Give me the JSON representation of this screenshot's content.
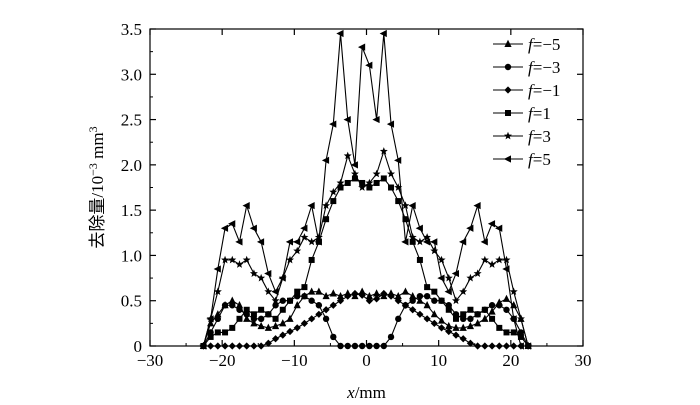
{
  "chart_data": {
    "type": "line",
    "xlabel_var": "x",
    "xlabel_unit": "/mm",
    "ylabel_text": "去除量/10",
    "ylabel_exp": "−3",
    "ylabel_unit": " mm",
    "ylabel_unit_exp": "3",
    "xlim": [
      -30,
      30
    ],
    "ylim": [
      0,
      3.5
    ],
    "xticks": [
      "−30",
      "−20",
      "−10",
      "0",
      "10",
      "20",
      "30"
    ],
    "yticks": [
      "0",
      "0.5",
      "1.0",
      "1.5",
      "2.0",
      "2.5",
      "3.0",
      "3.5"
    ],
    "legend_position": "top-right",
    "series": [
      {
        "name": "f=−5",
        "legend_var": "f",
        "legend_rest": "=−5",
        "marker": "triangle-up",
        "x": [
          -22.6,
          -21.6,
          -20.6,
          -19.6,
          -18.6,
          -17.6,
          -16.6,
          -15.6,
          -14.6,
          -13.6,
          -12.6,
          -11.6,
          -10.6,
          -9.6,
          -8.6,
          -7.6,
          -6.6,
          -5.6,
          -4.6,
          -3.6,
          -2.6,
          -1.6,
          -0.6,
          0.4,
          1.4,
          2.4,
          3.4,
          4.4,
          5.4,
          6.4,
          7.4,
          8.4,
          9.4,
          10.4,
          11.4,
          12.4,
          13.4,
          14.4,
          15.4,
          16.4,
          17.4,
          18.4,
          19.4,
          20.4,
          21.4,
          22.4
        ],
        "y": [
          0,
          0.25,
          0.35,
          0.45,
          0.5,
          0.45,
          0.3,
          0.25,
          0.22,
          0.2,
          0.22,
          0.25,
          0.3,
          0.45,
          0.55,
          0.6,
          0.6,
          0.55,
          0.58,
          0.55,
          0.58,
          0.55,
          0.6,
          0.55,
          0.58,
          0.55,
          0.58,
          0.55,
          0.6,
          0.55,
          0.5,
          0.45,
          0.35,
          0.28,
          0.22,
          0.2,
          0.2,
          0.22,
          0.25,
          0.3,
          0.38,
          0.48,
          0.52,
          0.45,
          0.3,
          0
        ]
      },
      {
        "name": "f=−3",
        "legend_var": "f",
        "legend_rest": "=−3",
        "marker": "circle",
        "x": [
          -22.6,
          -21.6,
          -20.6,
          -19.6,
          -18.6,
          -17.6,
          -16.6,
          -15.6,
          -14.6,
          -13.6,
          -12.6,
          -11.6,
          -10.6,
          -9.6,
          -8.6,
          -7.6,
          -6.6,
          -5.6,
          -4.6,
          -3.6,
          -2.6,
          -1.6,
          -0.6,
          0.4,
          1.4,
          2.4,
          3.4,
          4.4,
          5.4,
          6.4,
          7.4,
          8.4,
          9.4,
          10.4,
          11.4,
          12.4,
          13.4,
          14.4,
          15.4,
          16.4,
          17.4,
          18.4,
          19.4,
          20.4,
          21.4,
          22.4
        ],
        "y": [
          0,
          0.15,
          0.3,
          0.45,
          0.45,
          0.4,
          0.35,
          0.3,
          0.3,
          0.35,
          0.45,
          0.5,
          0.5,
          0.55,
          0.55,
          0.5,
          0.45,
          0.3,
          0.1,
          0,
          0,
          0,
          0,
          0,
          0,
          0,
          0.1,
          0.3,
          0.45,
          0.5,
          0.55,
          0.55,
          0.5,
          0.5,
          0.45,
          0.35,
          0.3,
          0.3,
          0.35,
          0.4,
          0.45,
          0.45,
          0.4,
          0.3,
          0.15,
          0
        ]
      },
      {
        "name": "f=−1",
        "legend_var": "f",
        "legend_rest": "=−1",
        "marker": "diamond",
        "x": [
          -22.6,
          -21.6,
          -20.6,
          -19.6,
          -18.6,
          -17.6,
          -16.6,
          -15.6,
          -14.6,
          -13.6,
          -12.6,
          -11.6,
          -10.6,
          -9.6,
          -8.6,
          -7.6,
          -6.6,
          -5.6,
          -4.6,
          -3.6,
          -2.6,
          -1.6,
          -0.6,
          0.4,
          1.4,
          2.4,
          3.4,
          4.4,
          5.4,
          6.4,
          7.4,
          8.4,
          9.4,
          10.4,
          11.4,
          12.4,
          13.4,
          14.4,
          15.4,
          16.4,
          17.4,
          18.4,
          19.4,
          20.4,
          21.4,
          22.4
        ],
        "y": [
          0,
          0,
          0,
          0,
          0,
          0,
          0,
          0,
          0,
          0.03,
          0.08,
          0.12,
          0.16,
          0.2,
          0.25,
          0.3,
          0.35,
          0.4,
          0.45,
          0.5,
          0.55,
          0.58,
          0.56,
          0.5,
          0.52,
          0.58,
          0.55,
          0.5,
          0.45,
          0.4,
          0.35,
          0.3,
          0.25,
          0.2,
          0.16,
          0.12,
          0.08,
          0.03,
          0,
          0,
          0,
          0,
          0,
          0,
          0,
          0
        ]
      },
      {
        "name": "f=1",
        "legend_var": "f",
        "legend_rest": "=1",
        "marker": "square",
        "x": [
          -22.6,
          -21.6,
          -20.6,
          -19.6,
          -18.6,
          -17.6,
          -16.6,
          -15.6,
          -14.6,
          -13.6,
          -12.6,
          -11.6,
          -10.6,
          -9.6,
          -8.6,
          -7.6,
          -6.6,
          -5.6,
          -4.6,
          -3.6,
          -2.6,
          -1.6,
          -0.6,
          0.4,
          1.4,
          2.4,
          3.4,
          4.4,
          5.4,
          6.4,
          7.4,
          8.4,
          9.4,
          10.4,
          11.4,
          12.4,
          13.4,
          14.4,
          15.4,
          16.4,
          17.4,
          18.4,
          19.4,
          20.4,
          21.4,
          22.4
        ],
        "y": [
          0,
          0.1,
          0.15,
          0.15,
          0.2,
          0.3,
          0.4,
          0.35,
          0.4,
          0.35,
          0.3,
          0.4,
          0.5,
          0.6,
          0.65,
          0.95,
          1.15,
          1.4,
          1.6,
          1.75,
          1.8,
          1.85,
          1.8,
          1.75,
          1.8,
          1.85,
          1.75,
          1.6,
          1.4,
          1.15,
          0.95,
          0.65,
          0.6,
          0.5,
          0.4,
          0.3,
          0.35,
          0.4,
          0.35,
          0.4,
          0.3,
          0.2,
          0.15,
          0.15,
          0.1,
          0
        ]
      },
      {
        "name": "f=3",
        "legend_var": "f",
        "legend_rest": "=3",
        "marker": "star",
        "x": [
          -22.6,
          -21.6,
          -20.6,
          -19.6,
          -18.6,
          -17.6,
          -16.6,
          -15.6,
          -14.6,
          -13.6,
          -12.6,
          -11.6,
          -10.6,
          -9.6,
          -8.6,
          -7.6,
          -6.6,
          -5.6,
          -4.6,
          -3.6,
          -2.6,
          -1.6,
          -0.6,
          0.4,
          1.4,
          2.4,
          3.4,
          4.4,
          5.4,
          6.4,
          7.4,
          8.4,
          9.4,
          10.4,
          11.4,
          12.4,
          13.4,
          14.4,
          15.4,
          16.4,
          17.4,
          18.4,
          19.4,
          20.4,
          21.4,
          22.4
        ],
        "y": [
          0,
          0.3,
          0.6,
          0.95,
          0.95,
          0.9,
          0.95,
          0.8,
          0.75,
          0.6,
          0.5,
          0.75,
          0.95,
          1.05,
          1.2,
          1.15,
          1.2,
          1.55,
          1.7,
          1.8,
          2.1,
          1.9,
          1.75,
          1.8,
          1.9,
          2.15,
          1.9,
          1.75,
          1.55,
          1.2,
          1.15,
          1.2,
          1.05,
          0.95,
          0.75,
          0.5,
          0.6,
          0.75,
          0.8,
          0.95,
          0.9,
          0.95,
          0.95,
          0.6,
          0.3,
          0
        ]
      },
      {
        "name": "f=5",
        "legend_var": "f",
        "legend_rest": "=5",
        "marker": "triangle-left",
        "x": [
          -22.6,
          -21.6,
          -20.6,
          -19.6,
          -18.6,
          -17.6,
          -16.6,
          -15.6,
          -14.6,
          -13.6,
          -12.6,
          -11.6,
          -10.6,
          -9.6,
          -8.6,
          -7.6,
          -6.6,
          -5.6,
          -4.6,
          -3.6,
          -2.6,
          -1.6,
          -0.6,
          0.4,
          1.4,
          2.4,
          3.4,
          4.4,
          5.4,
          6.4,
          7.4,
          8.4,
          9.4,
          10.4,
          11.4,
          12.4,
          13.4,
          14.4,
          15.4,
          16.4,
          17.4,
          18.4,
          19.4,
          20.4,
          21.4,
          22.4
        ],
        "y": [
          0,
          0.3,
          0.85,
          1.3,
          1.35,
          1.15,
          1.55,
          1.3,
          1.15,
          0.8,
          0.6,
          0.75,
          1.15,
          1.15,
          1.3,
          1.55,
          1.15,
          2.05,
          2.45,
          3.45,
          2.5,
          2.0,
          3.3,
          3.1,
          2.5,
          3.45,
          2.45,
          2.05,
          1.15,
          1.55,
          1.3,
          1.15,
          1.15,
          0.75,
          0.6,
          0.8,
          1.15,
          1.3,
          1.55,
          1.15,
          1.35,
          1.3,
          0.85,
          0.3,
          0,
          0
        ]
      }
    ]
  }
}
